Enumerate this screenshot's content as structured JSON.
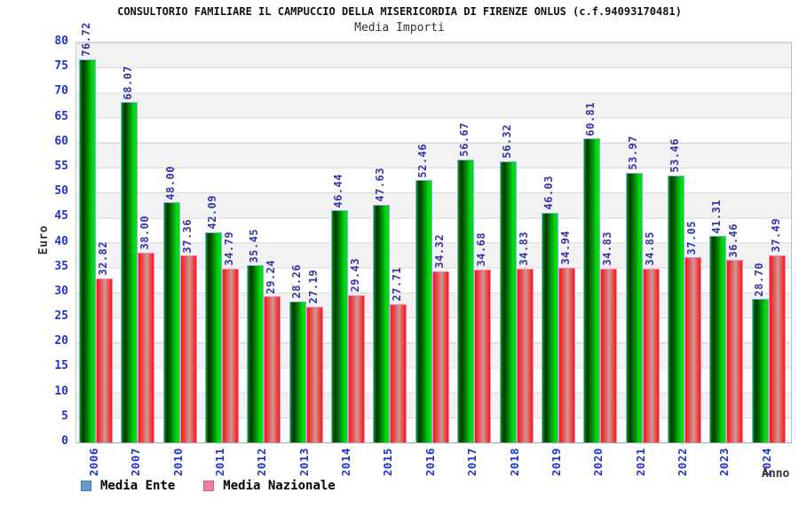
{
  "header": {
    "title": "CONSULTORIO FAMILIARE IL CAMPUCCIO DELLA MISERICORDIA DI FIRENZE ONLUS (c.f.94093170481)",
    "subtitle": "Media Importi"
  },
  "chart_data": {
    "type": "bar",
    "title": "CONSULTORIO FAMILIARE IL CAMPUCCIO DELLA MISERICORDIA DI FIRENZE ONLUS (c.f.94093170481)",
    "subtitle": "Media Importi",
    "xlabel": "Anno",
    "ylabel": "Euro",
    "ylim": [
      0,
      80
    ],
    "ytick_step": 5,
    "grid": true,
    "legend_position": "bottom",
    "value_label_decimals": 2,
    "categories": [
      "2006",
      "2007",
      "2010",
      "2011",
      "2012",
      "2013",
      "2014",
      "2015",
      "2016",
      "2017",
      "2018",
      "2019",
      "2020",
      "2021",
      "2022",
      "2023",
      "2024"
    ],
    "series": [
      {
        "name": "Media Ente",
        "bar_color": "#00cc00",
        "legend_color": "#6699cc",
        "values": [
          76.72,
          68.07,
          48.0,
          42.09,
          35.45,
          28.26,
          46.44,
          47.63,
          52.46,
          56.67,
          56.32,
          46.03,
          60.81,
          53.97,
          53.46,
          41.31,
          28.7
        ]
      },
      {
        "name": "Media Nazionale",
        "bar_color": "#ff3333",
        "legend_color": "#ee7fa8",
        "values": [
          32.82,
          38.0,
          37.36,
          34.79,
          29.24,
          27.19,
          29.43,
          27.71,
          34.32,
          34.68,
          34.83,
          34.94,
          34.83,
          34.85,
          37.05,
          36.46,
          37.49
        ]
      }
    ],
    "colors": {
      "axis_text": "#2233cc",
      "value_text": "#3535ad",
      "band_gray": "#f2f2f2",
      "band_white": "#ffffff",
      "gridline": "#d9d9d9"
    }
  }
}
